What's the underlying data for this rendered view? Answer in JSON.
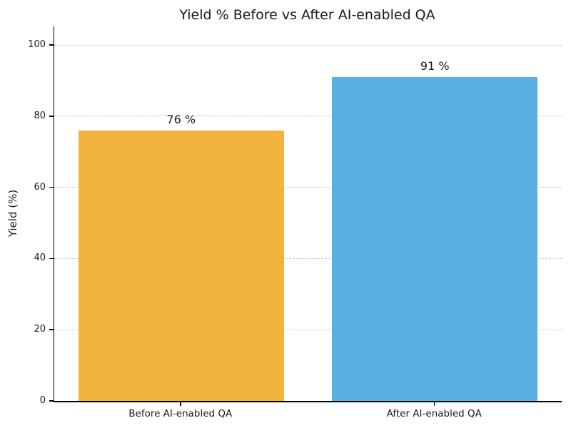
{
  "chart_data": {
    "type": "bar",
    "title": "Yield % Before vs After AI-enabled QA",
    "categories": [
      "Before AI-enabled QA",
      "After AI-enabled QA"
    ],
    "values": [
      76,
      91
    ],
    "bar_labels": [
      "76 %",
      "91 %"
    ],
    "bar_colors": [
      "#F2B33E",
      "#58B1E2"
    ],
    "xlabel": "",
    "ylabel": "Yield (%)",
    "ylim": [
      0,
      105
    ],
    "yticks": [
      0,
      20,
      40,
      60,
      80,
      100
    ],
    "grid": "horizontal dashed gridlines at y-ticks",
    "legend": "none",
    "background": "#ffffff",
    "text_color": "#1a1a1a"
  }
}
